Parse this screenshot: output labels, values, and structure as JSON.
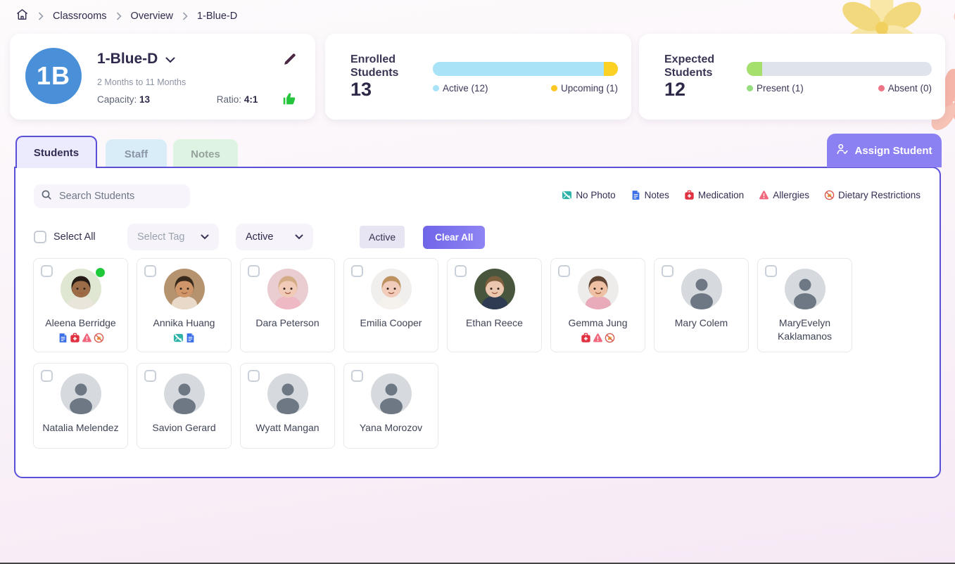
{
  "breadcrumb": {
    "items": [
      "Classrooms",
      "Overview",
      "1-Blue-D"
    ]
  },
  "classroom": {
    "initials": "1B",
    "name": "1-Blue-D",
    "age_range": "2 Months to 11 Months",
    "capacity_label": "Capacity:",
    "capacity_value": "13",
    "ratio_label": "Ratio:",
    "ratio_value": "4:1",
    "avatar_color": "#4a90d9"
  },
  "stats": [
    {
      "title": "Enrolled Students",
      "value": "13",
      "bar": {
        "track": "#a9e3f8",
        "segments": [
          {
            "color": "#a9e3f8",
            "fraction": 0.923
          },
          {
            "color": "#fdd024",
            "fraction": 0.077
          }
        ]
      },
      "legend": [
        {
          "label": "Active (12)",
          "color": "#a9e3f8"
        },
        {
          "label": "Upcoming (1)",
          "color": "#fdc826"
        }
      ]
    },
    {
      "title": "Expected Students",
      "value": "12",
      "bar": {
        "track": "#dfe4ec",
        "segments": [
          {
            "color": "#a5e06c",
            "fraction": 0.083
          }
        ]
      },
      "legend": [
        {
          "label": "Present (1)",
          "color": "#96dd80"
        },
        {
          "label": "Absent (0)",
          "color": "#ee7486"
        }
      ]
    }
  ],
  "tabs": [
    {
      "label": "Students",
      "active": true
    },
    {
      "label": "Staff",
      "active": false
    },
    {
      "label": "Notes",
      "active": false
    }
  ],
  "assign_button": {
    "label": "Assign Student"
  },
  "toolbar": {
    "search_placeholder": "Search Students"
  },
  "flag_legend": [
    {
      "icon": "no-photo-icon",
      "label": "No Photo"
    },
    {
      "icon": "notes-icon",
      "label": "Notes"
    },
    {
      "icon": "medication-icon",
      "label": "Medication"
    },
    {
      "icon": "allergies-icon",
      "label": "Allergies"
    },
    {
      "icon": "dietary-icon",
      "label": "Dietary Restrictions"
    }
  ],
  "filters": {
    "select_all_label": "Select All",
    "tag_placeholder": "Select Tag",
    "status_value": "Active",
    "active_filter_chip": "Active",
    "clear_all_label": "Clear All"
  },
  "students": [
    {
      "name": "Aleena Berridge",
      "present": true,
      "flags": [
        "notes",
        "medication",
        "allergies",
        "dietary"
      ],
      "photo": {
        "bg": "#dfe7d2",
        "skin": "#9c6b47",
        "hair": "#241b16",
        "shirt": "#e9e5da"
      }
    },
    {
      "name": "Annika Huang",
      "present": false,
      "flags": [
        "no-photo",
        "notes"
      ],
      "photo": {
        "bg": "#b5936f",
        "skin": "#cf9769",
        "hair": "#38291d",
        "shirt": "#e8d9c8"
      }
    },
    {
      "name": "Dara Peterson",
      "present": false,
      "flags": [],
      "photo": {
        "bg": "#e9cdd1",
        "skin": "#f2cbb8",
        "hair": "#d3ac86",
        "shirt": "#efb9c4"
      }
    },
    {
      "name": "Emilia Cooper",
      "present": false,
      "flags": [],
      "photo": {
        "bg": "#f0efed",
        "skin": "#f1ccba",
        "hair": "#bd9160",
        "shirt": "#f5f2ee"
      }
    },
    {
      "name": "Ethan Reece",
      "present": false,
      "flags": [],
      "photo": {
        "bg": "#47563c",
        "skin": "#ecc6ae",
        "hair": "#7d5f3e",
        "shirt": "#2e3b52"
      }
    },
    {
      "name": "Gemma Jung",
      "present": false,
      "flags": [
        "medication",
        "allergies",
        "dietary"
      ],
      "photo": {
        "bg": "#eeeceb",
        "skin": "#eec0a4",
        "hair": "#5f4433",
        "shirt": "#e9aab9"
      }
    },
    {
      "name": "Mary Colem",
      "present": false,
      "flags": [],
      "photo": null
    },
    {
      "name": "MaryEvelyn Kaklamanos",
      "present": false,
      "flags": [],
      "photo": null
    },
    {
      "name": "Natalia Melendez",
      "present": false,
      "flags": [],
      "photo": null
    },
    {
      "name": "Savion Gerard",
      "present": false,
      "flags": [],
      "photo": null
    },
    {
      "name": "Wyatt Mangan",
      "present": false,
      "flags": [],
      "photo": null
    },
    {
      "name": "Yana Morozov",
      "present": false,
      "flags": [],
      "photo": null
    }
  ],
  "colors": {
    "accent_indigo": "#5a50d8",
    "assign_purple": "#8b81f3",
    "present_dot": "#1ec93a"
  }
}
